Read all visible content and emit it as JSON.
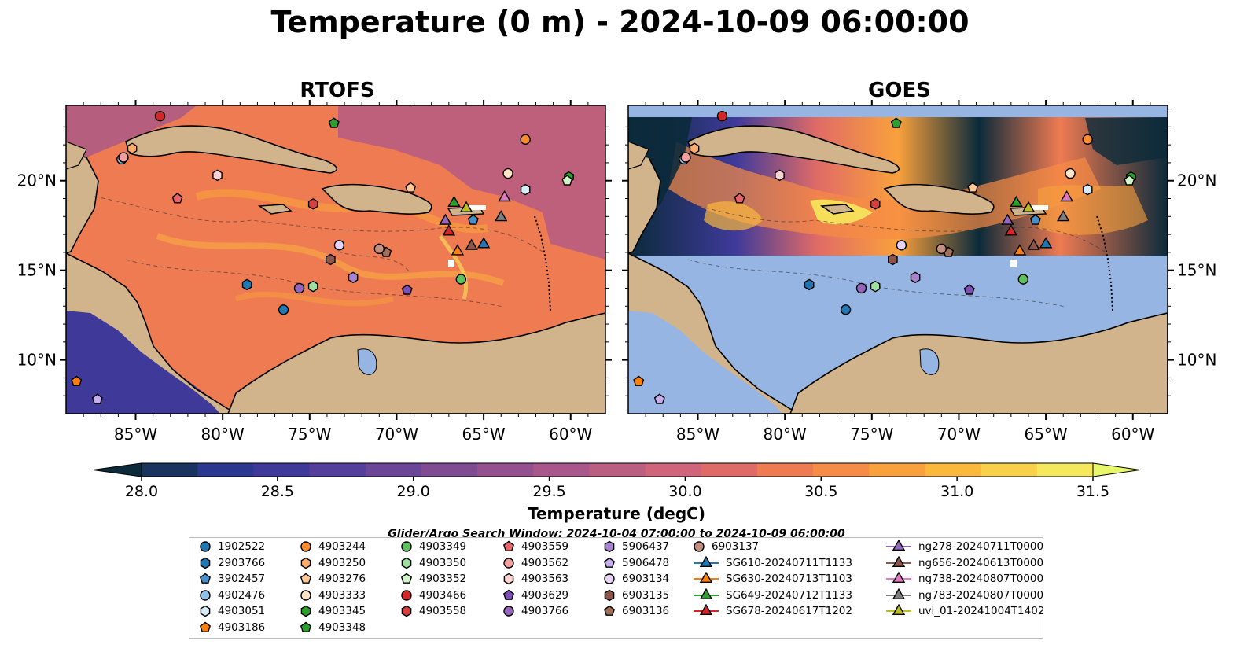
{
  "title": "Temperature (0 m) - 2024-10-09 06:00:00",
  "panels": [
    {
      "id": "rtofs",
      "title": "RTOFS"
    },
    {
      "id": "goes",
      "title": "GOES"
    }
  ],
  "axes": {
    "lon_ticks": [
      "85°W",
      "80°W",
      "75°W",
      "70°W",
      "65°W",
      "60°W"
    ],
    "lat_ticks": [
      "20°N",
      "15°N",
      "10°N"
    ]
  },
  "colorbar": {
    "min": 28.0,
    "max": 31.5,
    "ticks": [
      "28.0",
      "28.5",
      "29.0",
      "29.5",
      "30.0",
      "30.5",
      "31.0",
      "31.5"
    ],
    "label": "Temperature (degC)",
    "colors": [
      "#0b2a3a",
      "#19355f",
      "#2a3890",
      "#3f3a9a",
      "#553f9c",
      "#6b4598",
      "#7f4b93",
      "#93528f",
      "#a8588a",
      "#bc5e82",
      "#d0647a",
      "#e06b66",
      "#ef7b52",
      "#f68c45",
      "#f9a13c",
      "#fbb83d",
      "#f9d04a",
      "#f6e85c",
      "#e8f86a"
    ]
  },
  "colors": {
    "land": "#d2b48c",
    "ocean_nodata": "#97b5e2",
    "rtofs_base": "#ef7b52",
    "goes_cold": "#0b2a3a"
  },
  "search_window": "Glider/Argo Search Window: 2024-10-04 07:00:00 to 2024-10-09 06:00:00",
  "legend": {
    "columns": [
      [
        {
          "label": "1902522",
          "marker": "circle",
          "color": "#1f77b4"
        },
        {
          "label": "2903766",
          "marker": "hexagon",
          "color": "#1f77b4"
        },
        {
          "label": "3902457",
          "marker": "pentagon",
          "color": "#4a90c8"
        },
        {
          "label": "4902476",
          "marker": "circle",
          "color": "#8fc1e8"
        },
        {
          "label": "4903051",
          "marker": "hexagon",
          "color": "#d9ecf8"
        },
        {
          "label": "4903186",
          "marker": "pentagon",
          "color": "#ff7f0e"
        }
      ],
      [
        {
          "label": "4903244",
          "marker": "circle",
          "color": "#ff8c2e"
        },
        {
          "label": "4903250",
          "marker": "hexagon",
          "color": "#ffad6a"
        },
        {
          "label": "4903276",
          "marker": "pentagon",
          "color": "#ffc896"
        },
        {
          "label": "4903333",
          "marker": "circle",
          "color": "#ffe6c8"
        },
        {
          "label": "4903345",
          "marker": "hexagon",
          "color": "#2ca02c"
        },
        {
          "label": "4903348",
          "marker": "pentagon",
          "color": "#2ca02c"
        }
      ],
      [
        {
          "label": "4903349",
          "marker": "circle",
          "color": "#5cc05c"
        },
        {
          "label": "4903350",
          "marker": "hexagon",
          "color": "#9ee09e"
        },
        {
          "label": "4903352",
          "marker": "pentagon",
          "color": "#d2f5c8"
        },
        {
          "label": "4903466",
          "marker": "circle",
          "color": "#d62728"
        },
        {
          "label": "4903558",
          "marker": "hexagon",
          "color": "#d64040"
        }
      ],
      [
        {
          "label": "4903559",
          "marker": "pentagon",
          "color": "#e8636a"
        },
        {
          "label": "4903562",
          "marker": "circle",
          "color": "#f5a0a0"
        },
        {
          "label": "4903563",
          "marker": "hexagon",
          "color": "#fcd2d2"
        },
        {
          "label": "4903629",
          "marker": "pentagon",
          "color": "#7f4fb8"
        },
        {
          "label": "4903766",
          "marker": "circle",
          "color": "#9467bd"
        }
      ],
      [
        {
          "label": "5906437",
          "marker": "hexagon",
          "color": "#a883d0"
        },
        {
          "label": "5906478",
          "marker": "pentagon",
          "color": "#c8aef0"
        },
        {
          "label": "6903134",
          "marker": "circle",
          "color": "#e6d4f8"
        },
        {
          "label": "6903135",
          "marker": "hexagon",
          "color": "#8c564b"
        },
        {
          "label": "6903136",
          "marker": "pentagon",
          "color": "#a0705a"
        }
      ],
      [
        {
          "label": "6903137",
          "marker": "circle",
          "color": "#c49080"
        },
        {
          "label": "SG610-20240711T1133",
          "marker": "triangle",
          "color": "#1f77b4"
        },
        {
          "label": "SG630-20240713T1103",
          "marker": "triangle",
          "color": "#ff7f0e"
        },
        {
          "label": "SG649-20240712T1133",
          "marker": "triangle",
          "color": "#2ca02c"
        },
        {
          "label": "SG678-20240617T1202",
          "marker": "triangle",
          "color": "#d62728"
        }
      ],
      [
        {
          "label": "ng278-20240711T0000",
          "marker": "triangle",
          "color": "#9467bd"
        },
        {
          "label": "ng656-20240613T0000",
          "marker": "triangle",
          "color": "#8c564b"
        },
        {
          "label": "ng738-20240807T0000",
          "marker": "triangle",
          "color": "#e377c2"
        },
        {
          "label": "ng783-20240807T0000",
          "marker": "triangle",
          "color": "#7f7f7f"
        },
        {
          "label": "uvi_01-20241004T1402",
          "marker": "triangle",
          "color": "#bcbd22"
        }
      ]
    ]
  },
  "observations": [
    {
      "id": "1902522",
      "lon": -76.5,
      "lat": 12.8
    },
    {
      "id": "2903766",
      "lon": -78.6,
      "lat": 14.2
    },
    {
      "id": "3902457",
      "lon": -65.6,
      "lat": 17.8
    },
    {
      "id": "4902476",
      "lon": -85.8,
      "lat": 21.2
    },
    {
      "id": "4903051",
      "lon": -62.6,
      "lat": 19.5
    },
    {
      "id": "4903186",
      "lon": -88.4,
      "lat": 8.8
    },
    {
      "id": "4903244",
      "lon": -62.6,
      "lat": 22.3
    },
    {
      "id": "4903250",
      "lon": -85.2,
      "lat": 21.8
    },
    {
      "id": "4903276",
      "lon": -69.2,
      "lat": 19.6
    },
    {
      "id": "4903333",
      "lon": -63.6,
      "lat": 20.4
    },
    {
      "id": "4903345",
      "lon": -60.1,
      "lat": 20.2
    },
    {
      "id": "4903348",
      "lon": -73.6,
      "lat": 23.2
    },
    {
      "id": "4903349",
      "lon": -66.3,
      "lat": 14.5
    },
    {
      "id": "4903350",
      "lon": -74.8,
      "lat": 14.1
    },
    {
      "id": "4903352",
      "lon": -60.2,
      "lat": 20.0
    },
    {
      "id": "4903466",
      "lon": -83.6,
      "lat": 23.6
    },
    {
      "id": "4903558",
      "lon": -74.8,
      "lat": 18.7
    },
    {
      "id": "4903559",
      "lon": -82.6,
      "lat": 19.0
    },
    {
      "id": "4903562",
      "lon": -85.7,
      "lat": 21.3
    },
    {
      "id": "4903563",
      "lon": -80.3,
      "lat": 20.3
    },
    {
      "id": "4903629",
      "lon": -69.4,
      "lat": 13.9
    },
    {
      "id": "4903766",
      "lon": -75.6,
      "lat": 14.0
    },
    {
      "id": "5906437",
      "lon": -72.5,
      "lat": 14.6
    },
    {
      "id": "5906478",
      "lon": -87.2,
      "lat": 7.8
    },
    {
      "id": "6903134",
      "lon": -73.3,
      "lat": 16.4
    },
    {
      "id": "6903135",
      "lon": -73.8,
      "lat": 15.6
    },
    {
      "id": "6903136",
      "lon": -70.6,
      "lat": 16.0
    },
    {
      "id": "6903137",
      "lon": -71.0,
      "lat": 16.2
    },
    {
      "id": "SG610-20240711T1133",
      "lon": -65.0,
      "lat": 16.5
    },
    {
      "id": "SG630-20240713T1103",
      "lon": -66.5,
      "lat": 16.1
    },
    {
      "id": "SG649-20240712T1133",
      "lon": -66.7,
      "lat": 18.8
    },
    {
      "id": "SG678-20240617T1202",
      "lon": -67.0,
      "lat": 17.2
    },
    {
      "id": "ng278-20240711T0000",
      "lon": -67.2,
      "lat": 17.8
    },
    {
      "id": "ng656-20240613T0000",
      "lon": -65.7,
      "lat": 16.4
    },
    {
      "id": "ng738-20240807T0000",
      "lon": -63.8,
      "lat": 19.1
    },
    {
      "id": "ng783-20240807T0000",
      "lon": -64.0,
      "lat": 18.0
    },
    {
      "id": "uvi_01-20241004T1402",
      "lon": -66.0,
      "lat": 18.5
    }
  ]
}
